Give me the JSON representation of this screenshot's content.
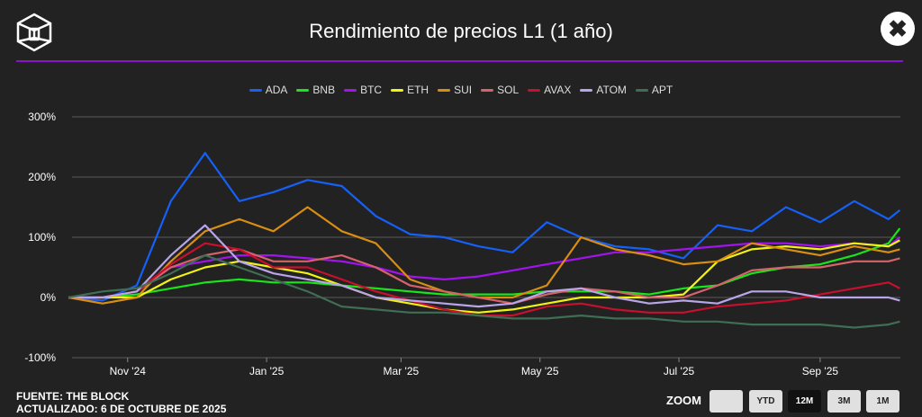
{
  "header": {
    "title": "Rendimiento de precios L1 (1 año)",
    "close_label": "✖"
  },
  "footer": {
    "source": "FUENTE: THE BLOCK",
    "updated": "ACTUALIZADO: 6 DE OCTUBRE DE 2025"
  },
  "zoom": {
    "label": "ZOOM",
    "buttons": [
      "",
      "YTD",
      "12M",
      "3M",
      "1M"
    ],
    "active": "12M"
  },
  "chart_data": {
    "type": "line",
    "title": "Rendimiento de precios L1 (1 año)",
    "xlabel": "",
    "ylabel": "",
    "x_unit": "days since 2024-10-06",
    "x": [
      0,
      15,
      30,
      45,
      60,
      75,
      90,
      105,
      120,
      135,
      150,
      165,
      180,
      195,
      210,
      225,
      240,
      255,
      270,
      285,
      300,
      315,
      330,
      345,
      360,
      365
    ],
    "xlim": [
      0,
      365
    ],
    "ylim": [
      -100,
      300
    ],
    "yticks": [
      -100,
      0,
      100,
      200,
      300
    ],
    "ytick_labels": [
      "-100%",
      "0%",
      "100%",
      "200%",
      "300%"
    ],
    "xticks": [
      26,
      87,
      146,
      207,
      268,
      330
    ],
    "xtick_labels": [
      "Nov '24",
      "Jan '25",
      "Mar '25",
      "May '25",
      "Jul '25",
      "Sep '25"
    ],
    "grid": true,
    "legend_position": "top-center",
    "series": [
      {
        "name": "ADA",
        "color": "#1560f6",
        "values": [
          0,
          -5,
          20,
          160,
          240,
          160,
          175,
          195,
          185,
          135,
          105,
          100,
          85,
          75,
          125,
          100,
          85,
          80,
          65,
          120,
          110,
          150,
          125,
          160,
          130,
          145
        ]
      },
      {
        "name": "BNB",
        "color": "#19e619",
        "values": [
          0,
          0,
          5,
          15,
          25,
          30,
          25,
          25,
          20,
          15,
          10,
          5,
          5,
          5,
          10,
          10,
          10,
          5,
          15,
          20,
          40,
          50,
          55,
          70,
          90,
          115
        ]
      },
      {
        "name": "BTC",
        "color": "#a313f0",
        "values": [
          0,
          0,
          10,
          50,
          60,
          70,
          70,
          65,
          60,
          50,
          35,
          30,
          35,
          45,
          55,
          65,
          75,
          75,
          80,
          85,
          90,
          90,
          85,
          90,
          85,
          100
        ]
      },
      {
        "name": "ETH",
        "color": "#f2f213",
        "values": [
          0,
          0,
          0,
          30,
          50,
          60,
          50,
          40,
          20,
          0,
          -10,
          -20,
          -25,
          -20,
          -10,
          0,
          0,
          0,
          5,
          60,
          80,
          85,
          80,
          90,
          85,
          95
        ]
      },
      {
        "name": "SUI",
        "color": "#d98e12",
        "values": [
          0,
          -10,
          0,
          60,
          110,
          130,
          110,
          150,
          110,
          90,
          30,
          10,
          0,
          0,
          20,
          100,
          80,
          70,
          55,
          60,
          90,
          80,
          70,
          85,
          75,
          80
        ]
      },
      {
        "name": "SOL",
        "color": "#d6636a",
        "values": [
          0,
          0,
          10,
          50,
          70,
          80,
          60,
          60,
          70,
          50,
          20,
          10,
          0,
          -10,
          5,
          15,
          10,
          0,
          0,
          20,
          45,
          50,
          50,
          60,
          60,
          65
        ]
      },
      {
        "name": "AVAX",
        "color": "#c8102e",
        "values": [
          0,
          0,
          10,
          55,
          90,
          80,
          50,
          50,
          30,
          10,
          -5,
          -20,
          -30,
          -30,
          -15,
          -10,
          -20,
          -25,
          -25,
          -15,
          -10,
          -5,
          5,
          15,
          25,
          15
        ]
      },
      {
        "name": "ATOM",
        "color": "#b9a6ea",
        "values": [
          0,
          0,
          10,
          70,
          120,
          60,
          40,
          30,
          20,
          0,
          -5,
          -10,
          -15,
          -10,
          10,
          15,
          0,
          -10,
          -5,
          -10,
          10,
          10,
          0,
          0,
          0,
          -5
        ]
      },
      {
        "name": "APT",
        "color": "#3f6e55",
        "values": [
          0,
          10,
          15,
          40,
          70,
          50,
          30,
          10,
          -15,
          -20,
          -25,
          -25,
          -30,
          -35,
          -35,
          -30,
          -35,
          -35,
          -40,
          -40,
          -45,
          -45,
          -45,
          -50,
          -45,
          -40
        ]
      }
    ]
  }
}
